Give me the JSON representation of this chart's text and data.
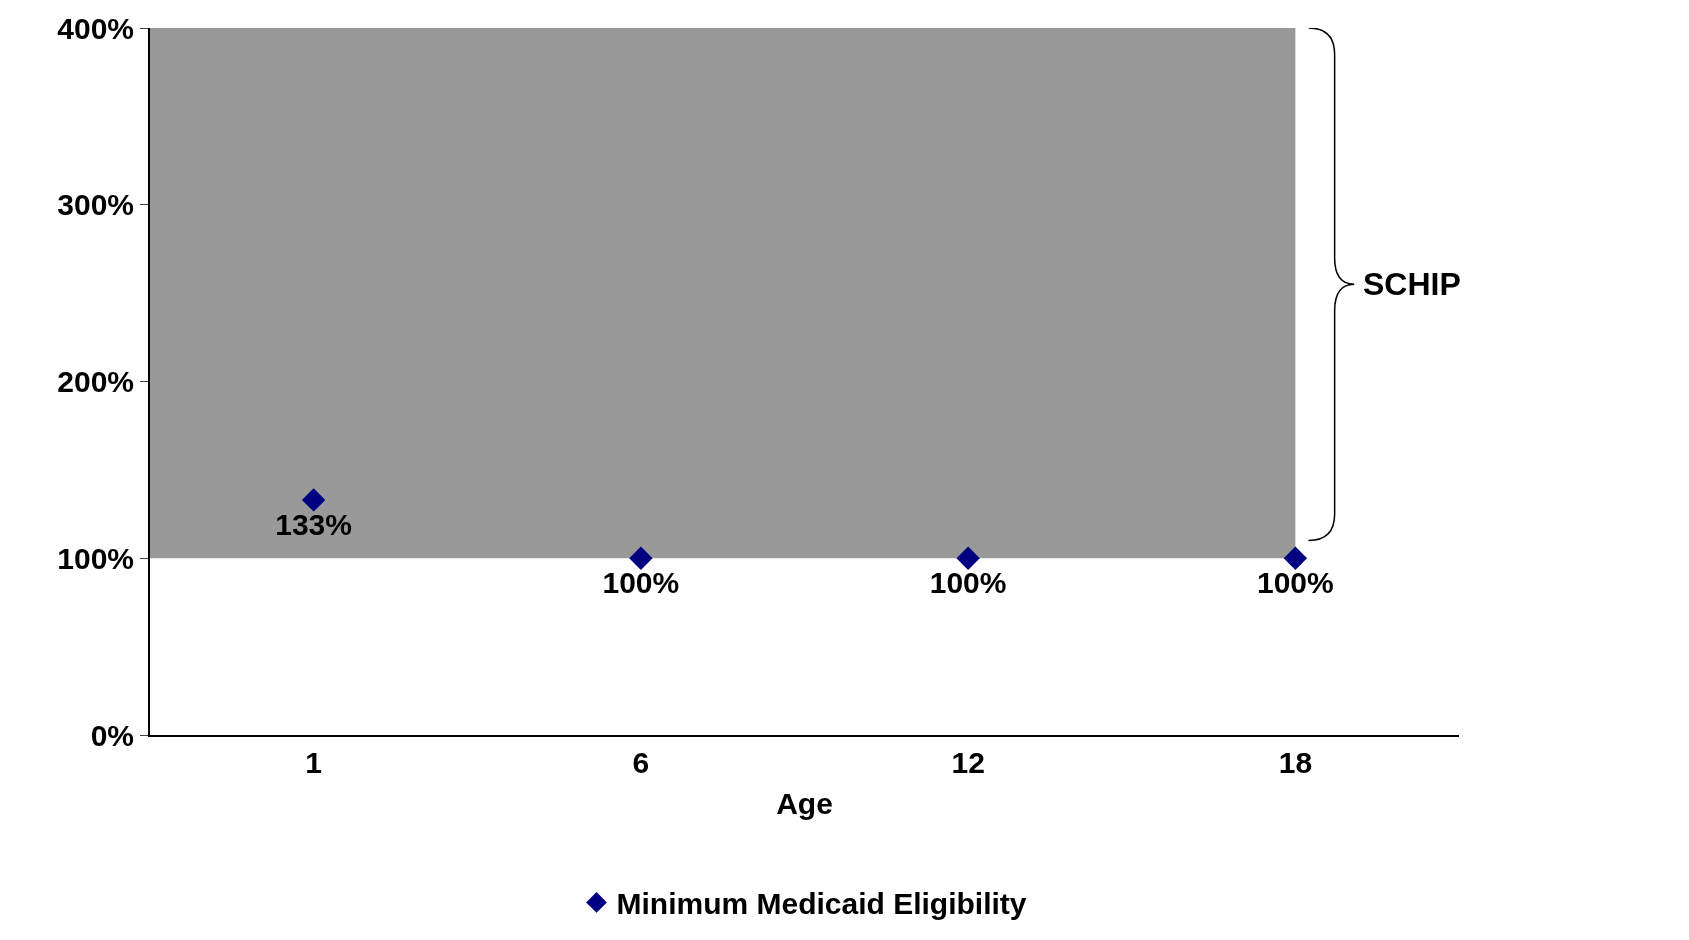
{
  "chart_data": {
    "type": "scatter",
    "xlabel": "Age",
    "categories": [
      "1",
      "6",
      "12",
      "18"
    ],
    "series": [
      {
        "name": "Minimum Medicaid Eligibility",
        "color": "#000080",
        "values": [
          133,
          100,
          100,
          100
        ],
        "value_labels": [
          "133%",
          "100%",
          "100%",
          "100%"
        ]
      }
    ],
    "marker": "diamond",
    "ylim": [
      0,
      400
    ],
    "yticks": [
      {
        "value": 0,
        "label": "0%"
      },
      {
        "value": 100,
        "label": "100%"
      },
      {
        "value": 200,
        "label": "200%"
      },
      {
        "value": 300,
        "label": "300%"
      },
      {
        "value": 400,
        "label": "400%"
      }
    ],
    "bands": [
      {
        "axis": "y",
        "from": 100,
        "to": 400,
        "label": "SCHIP",
        "color": "#999999"
      }
    ],
    "grid": false,
    "legend": "bottom"
  }
}
